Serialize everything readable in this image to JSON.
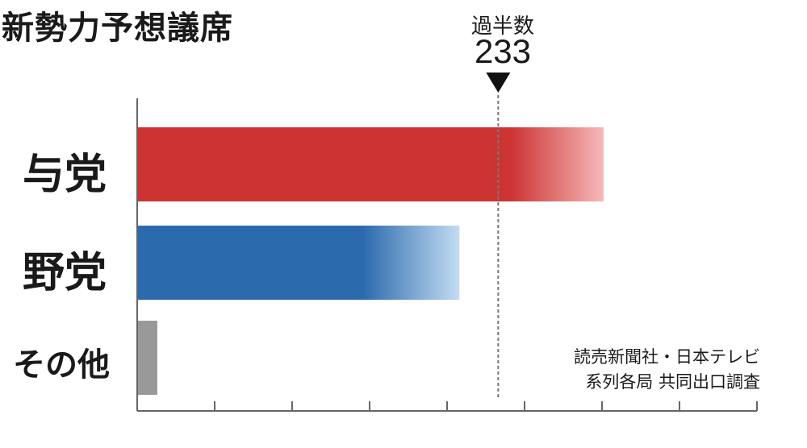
{
  "title": "新勢力予想議席",
  "majority": {
    "label": "過半数",
    "value": 233
  },
  "source": {
    "line1": "読売新聞社・日本テレビ",
    "line2": "系列各局 共同出口調査"
  },
  "colors": {
    "ruling": "#cc3333",
    "opposition": "#2b6aad",
    "other": "#999999",
    "axis": "#666666"
  },
  "chart_data": {
    "type": "bar",
    "orientation": "horizontal",
    "title": "新勢力予想議席",
    "categories": [
      "与党",
      "野党",
      "その他"
    ],
    "values": [
      301,
      208,
      13
    ],
    "xlim": [
      0,
      400
    ],
    "reference_line": {
      "label": "過半数",
      "value": 233
    },
    "xticks": [
      0,
      50,
      100,
      150,
      200,
      250,
      300,
      350,
      400
    ],
    "grid": false
  }
}
